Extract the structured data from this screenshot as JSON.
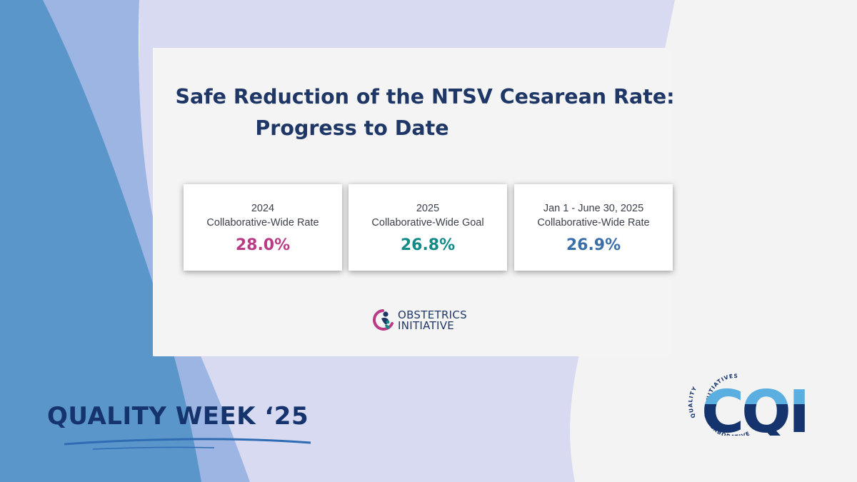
{
  "title": {
    "line1": "Safe Reduction of the NTSV Cesarean Rate:",
    "line2": "Progress to Date"
  },
  "cards": [
    {
      "line1": "2024",
      "line2": "Collaborative-Wide Rate",
      "value": "28.0%",
      "color": "#b93b86"
    },
    {
      "line1": "2025",
      "line2": "Collaborative-Wide Goal",
      "value": "26.8%",
      "color": "#128b86"
    },
    {
      "line1": "Jan 1 - June 30, 2025",
      "line2": "Collaborative-Wide Rate",
      "value": "26.9%",
      "color": "#3a6fa8"
    }
  ],
  "obstetrics_logo": {
    "line1": "OBSTETRICS",
    "line2": "INITIATIVE"
  },
  "quality_week": "QUALITY WEEK ‘25",
  "cqi_logo": {
    "letters": "CQI",
    "ring_top": "INITIATIVES",
    "ring_left": "QUALITY",
    "ring_bottom": "COLLABORATIVE"
  },
  "colors": {
    "navy": "#15346d",
    "title": "#1e3766",
    "background": "#f3f3f4",
    "wave_dark": "#5b96cb",
    "wave_mid": "#9db5e2",
    "wave_light": "#d8daf1",
    "cqi_light": "#5aaee0"
  }
}
